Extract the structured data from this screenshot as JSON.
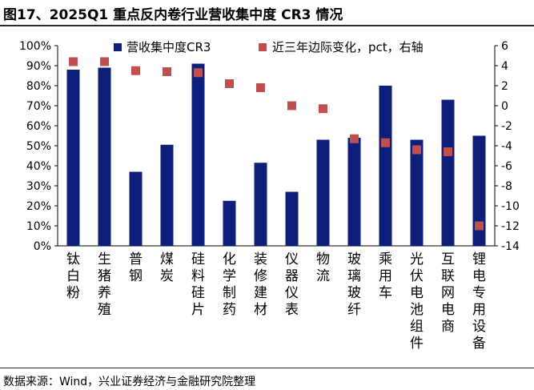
{
  "title": "图17、2025Q1 重点反内卷行业营收集中度 CR3 情况",
  "source": "数据来源：Wind，兴业证券经济与金融研究院整理",
  "chart_data": {
    "type": "bar+scatter",
    "title": "图17、2025Q1 重点反内卷行业营收集中度 CR3 情况",
    "categories": [
      "钛白粉",
      "生猪养殖",
      "普钢",
      "煤炭",
      "硅料硅片",
      "化学制药",
      "装修建材",
      "仪器仪表",
      "物流",
      "玻璃玻纤",
      "乘用车",
      "光伏电池组件",
      "互联网电商",
      "锂电专用设备"
    ],
    "series": [
      {
        "name": "营收集中度CR3",
        "type": "bar",
        "axis": "left",
        "unit": "%",
        "values": [
          88,
          89,
          37,
          50.5,
          91,
          22.5,
          41.5,
          27,
          53,
          54,
          80,
          53,
          73,
          55
        ]
      },
      {
        "name": "近三年边际变化，pct，右轴",
        "type": "scatter",
        "axis": "right",
        "unit": "pct",
        "values": [
          4.4,
          4.4,
          3.5,
          3.4,
          3.3,
          2.2,
          1.8,
          0.0,
          -0.3,
          -3.3,
          -3.7,
          -4.4,
          -4.6,
          -12.0
        ]
      }
    ],
    "y_left": {
      "min": 0,
      "max": 100,
      "step": 10,
      "ticks": [
        "0%",
        "10%",
        "20%",
        "30%",
        "40%",
        "50%",
        "60%",
        "70%",
        "80%",
        "90%",
        "100%"
      ]
    },
    "y_right": {
      "min": -14,
      "max": 6,
      "step": 2,
      "ticks": [
        "-14",
        "-12",
        "-10",
        "-8",
        "-6",
        "-4",
        "-2",
        "0",
        "2",
        "4",
        "6"
      ]
    },
    "legend": [
      "营收集中度CR3",
      "近三年边际变化，pct，右轴"
    ],
    "legend_position": "top",
    "grid": false,
    "colors": {
      "bar": "#0d1f7a",
      "marker": "#c0504d"
    }
  }
}
